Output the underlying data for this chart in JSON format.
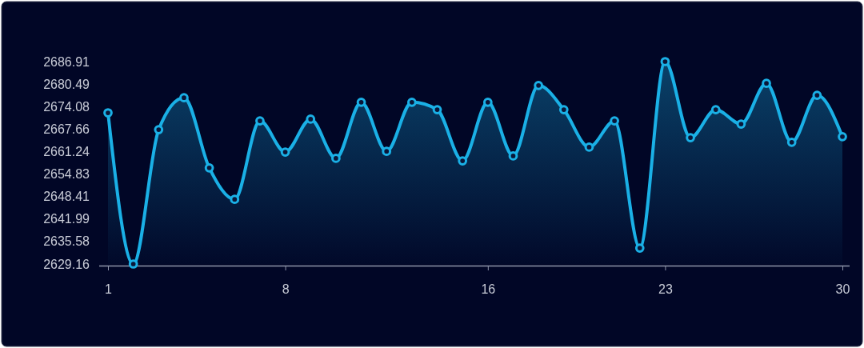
{
  "chart_data": {
    "type": "area",
    "categories": [
      "1",
      null,
      null,
      null,
      null,
      null,
      null,
      "8",
      null,
      null,
      null,
      null,
      null,
      null,
      null,
      "16",
      null,
      null,
      null,
      null,
      null,
      null,
      "23",
      null,
      null,
      null,
      null,
      null,
      null,
      "30"
    ],
    "series": [
      {
        "color": "#1ab0e6",
        "values": [
          2672.3,
          2629.16,
          2667.5,
          2676.6,
          2656.6,
          2647.6,
          2670.0,
          2661.1,
          2670.5,
          2659.3,
          2675.3,
          2661.3,
          2675.3,
          2673.2,
          2658.6,
          2675.3,
          2660.0,
          2680.1,
          2673.2,
          2662.5,
          2670.0,
          2633.7,
          2686.91,
          2665.2,
          2673.2,
          2669.1,
          2680.7,
          2663.9,
          2677.3,
          2665.5
        ]
      }
    ],
    "ylim": [
      2629.16,
      2686.91
    ],
    "yticks": [
      2629.16,
      2635.58,
      2641.99,
      2648.41,
      2654.83,
      2661.24,
      2667.66,
      2674.08,
      2680.49,
      2686.91
    ],
    "marker": "circle",
    "grid": false
  }
}
